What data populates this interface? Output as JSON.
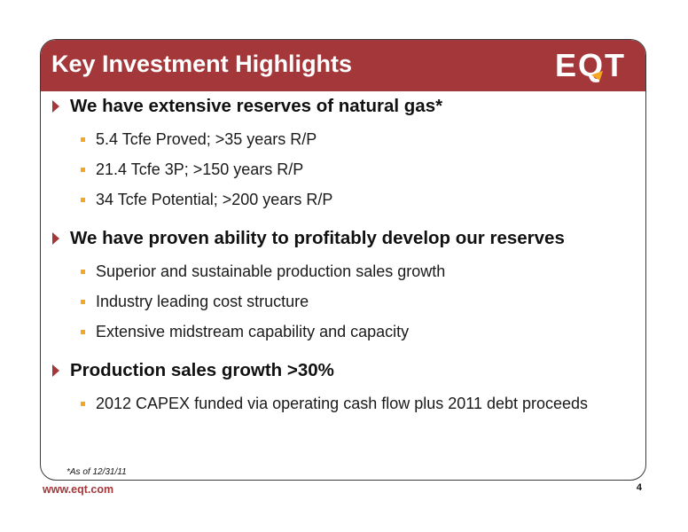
{
  "slide": {
    "title": "Key Investment Highlights",
    "logo": {
      "text_left": "E",
      "text_mid": "Q",
      "text_right": "T",
      "icon": "eqt-logo-icon",
      "accent_color": "#f5a623"
    },
    "brand_color": "#a4373a",
    "sections": [
      {
        "heading": "We have extensive reserves of natural gas*",
        "items": [
          "5.4 Tcfe Proved; >35 years R/P",
          "21.4 Tcfe 3P; >150 years R/P",
          "34 Tcfe Potential; >200 years R/P"
        ]
      },
      {
        "heading": "We have proven ability to profitably develop our reserves",
        "items": [
          "Superior and sustainable production sales growth",
          "Industry leading cost structure",
          "Extensive midstream capability and capacity"
        ]
      },
      {
        "heading": "Production sales growth >30%",
        "items": [
          "2012 CAPEX funded via operating cash flow plus 2011 debt proceeds"
        ]
      }
    ],
    "footnote": "*As of 12/31/11",
    "footer_url": "www.eqt.com",
    "page_number": "4"
  }
}
